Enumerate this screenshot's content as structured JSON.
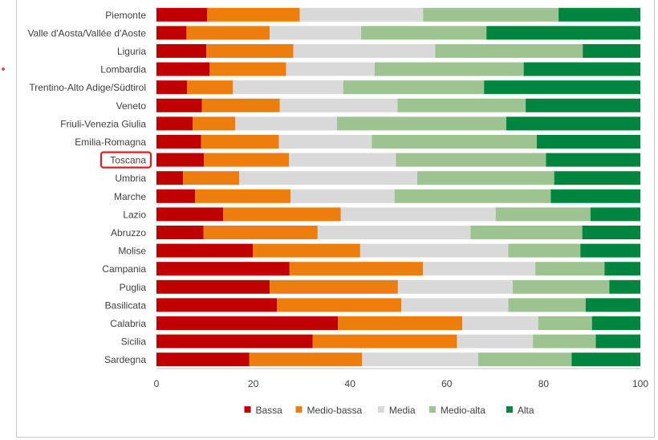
{
  "chart_data": {
    "type": "bar",
    "orientation": "horizontal",
    "stacked": true,
    "title": "",
    "xlabel": "",
    "ylabel": "",
    "xlim": [
      0,
      100
    ],
    "xticks": [
      0,
      20,
      40,
      60,
      80,
      100
    ],
    "grid": false,
    "legend_position": "bottom",
    "highlighted_category": "Toscana",
    "categories": [
      "Piemonte",
      "Valle d'Aosta/Vallée d'Aoste",
      "Liguria",
      "Lombardia",
      "Trentino-Alto Adige/Südtirol",
      "Veneto",
      "Friuli-Venezia Giulia",
      "Emilia-Romagna",
      "Toscana",
      "Umbria",
      "Marche",
      "Lazio",
      "Abruzzo",
      "Molise",
      "Campania",
      "Puglia",
      "Basilicata",
      "Calabria",
      "Sicilia",
      "Sardegna"
    ],
    "series": [
      {
        "name": "Bassa",
        "color": "#c00000",
        "values": [
          10.5,
          6.2,
          10.3,
          11.0,
          6.3,
          9.4,
          7.5,
          9.2,
          9.8,
          5.5,
          8.0,
          13.8,
          9.7,
          19.9,
          27.5,
          23.4,
          24.9,
          37.5,
          32.3,
          19.2
        ]
      },
      {
        "name": "Medio-bassa",
        "color": "#ed7d0d",
        "values": [
          19.1,
          17.2,
          18.0,
          15.8,
          9.5,
          16.1,
          8.8,
          16.1,
          17.6,
          11.6,
          19.7,
          24.3,
          23.6,
          22.2,
          27.6,
          26.5,
          25.7,
          25.7,
          29.8,
          23.3
        ]
      },
      {
        "name": "Media",
        "color": "#d9d9d9",
        "values": [
          25.5,
          18.9,
          29.3,
          18.3,
          22.8,
          24.3,
          21.0,
          19.2,
          22.1,
          36.8,
          21.5,
          32.0,
          31.6,
          30.6,
          23.2,
          23.7,
          22.1,
          15.7,
          15.7,
          24.0
        ]
      },
      {
        "name": "Medio-alta",
        "color": "#9dc391",
        "values": [
          28.0,
          25.9,
          30.5,
          30.8,
          29.1,
          26.5,
          35.0,
          34.1,
          31.0,
          28.3,
          32.3,
          19.6,
          23.1,
          14.9,
          14.3,
          20.0,
          16.0,
          11.1,
          13.0,
          19.3
        ]
      },
      {
        "name": "Alta",
        "color": "#00853f",
        "values": [
          16.9,
          31.8,
          11.9,
          24.1,
          32.3,
          23.7,
          27.7,
          21.4,
          19.5,
          17.8,
          18.5,
          10.3,
          12.0,
          12.4,
          7.4,
          6.4,
          11.3,
          10.0,
          9.2,
          14.2
        ]
      }
    ]
  }
}
